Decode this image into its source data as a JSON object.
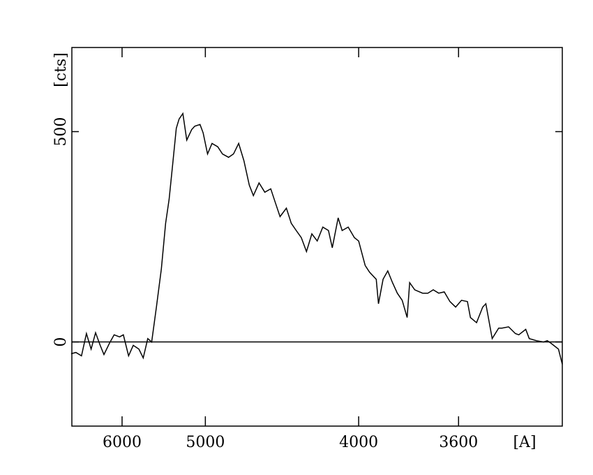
{
  "chart_data": {
    "type": "line",
    "xlabel": "[A]",
    "ylabel": "[cts]",
    "xscale": "inverse-square",
    "xlim": [
      7000,
      3290
    ],
    "xticks": [
      6000,
      5000,
      4000,
      3600
    ],
    "ylim": [
      -200,
      700
    ],
    "yticks": [
      0,
      500
    ],
    "reference_line": 0,
    "series": [
      {
        "color": "#000000",
        "x": [
          7020,
          6900,
          6770,
          6660,
          6560,
          6470,
          6380,
          6310,
          6210,
          6130,
          6040,
          5980,
          5900,
          5830,
          5750,
          5690,
          5630,
          5580,
          5520,
          5460,
          5410,
          5370,
          5330,
          5290,
          5260,
          5220,
          5180,
          5130,
          5100,
          5050,
          5020,
          4980,
          4940,
          4890,
          4850,
          4800,
          4760,
          4720,
          4680,
          4640,
          4610,
          4570,
          4530,
          4490,
          4460,
          4430,
          4390,
          4360,
          4330,
          4300,
          4270,
          4240,
          4210,
          4180,
          4150,
          4130,
          4100,
          4080,
          4050,
          4020,
          4000,
          3970,
          3950,
          3920,
          3910,
          3890,
          3870,
          3850,
          3830,
          3810,
          3790,
          3780,
          3760,
          3730,
          3710,
          3690,
          3670,
          3650,
          3630,
          3610,
          3590,
          3570,
          3560,
          3540,
          3520,
          3510,
          3490,
          3470,
          3460,
          3440,
          3420,
          3410,
          3390,
          3380,
          3360,
          3340,
          3330,
          3320,
          3300,
          3290
        ],
        "values": [
          -28,
          -25,
          -33,
          20,
          -17,
          22,
          -8,
          -30,
          -3,
          17,
          12,
          17,
          -33,
          -8,
          -17,
          -38,
          8,
          0,
          83,
          174,
          282,
          339,
          422,
          508,
          530,
          543,
          480,
          505,
          513,
          517,
          497,
          447,
          472,
          464,
          447,
          439,
          447,
          472,
          431,
          373,
          348,
          378,
          356,
          364,
          331,
          298,
          318,
          282,
          265,
          248,
          215,
          257,
          240,
          273,
          265,
          224,
          295,
          265,
          273,
          248,
          240,
          182,
          166,
          149,
          91,
          149,
          169,
          141,
          116,
          99,
          58,
          141,
          124,
          116,
          116,
          124,
          116,
          119,
          96,
          83,
          99,
          96,
          58,
          46,
          83,
          91,
          8,
          33,
          33,
          36,
          20,
          17,
          30,
          8,
          3,
          0,
          3,
          -3,
          -17,
          -53
        ]
      }
    ]
  }
}
